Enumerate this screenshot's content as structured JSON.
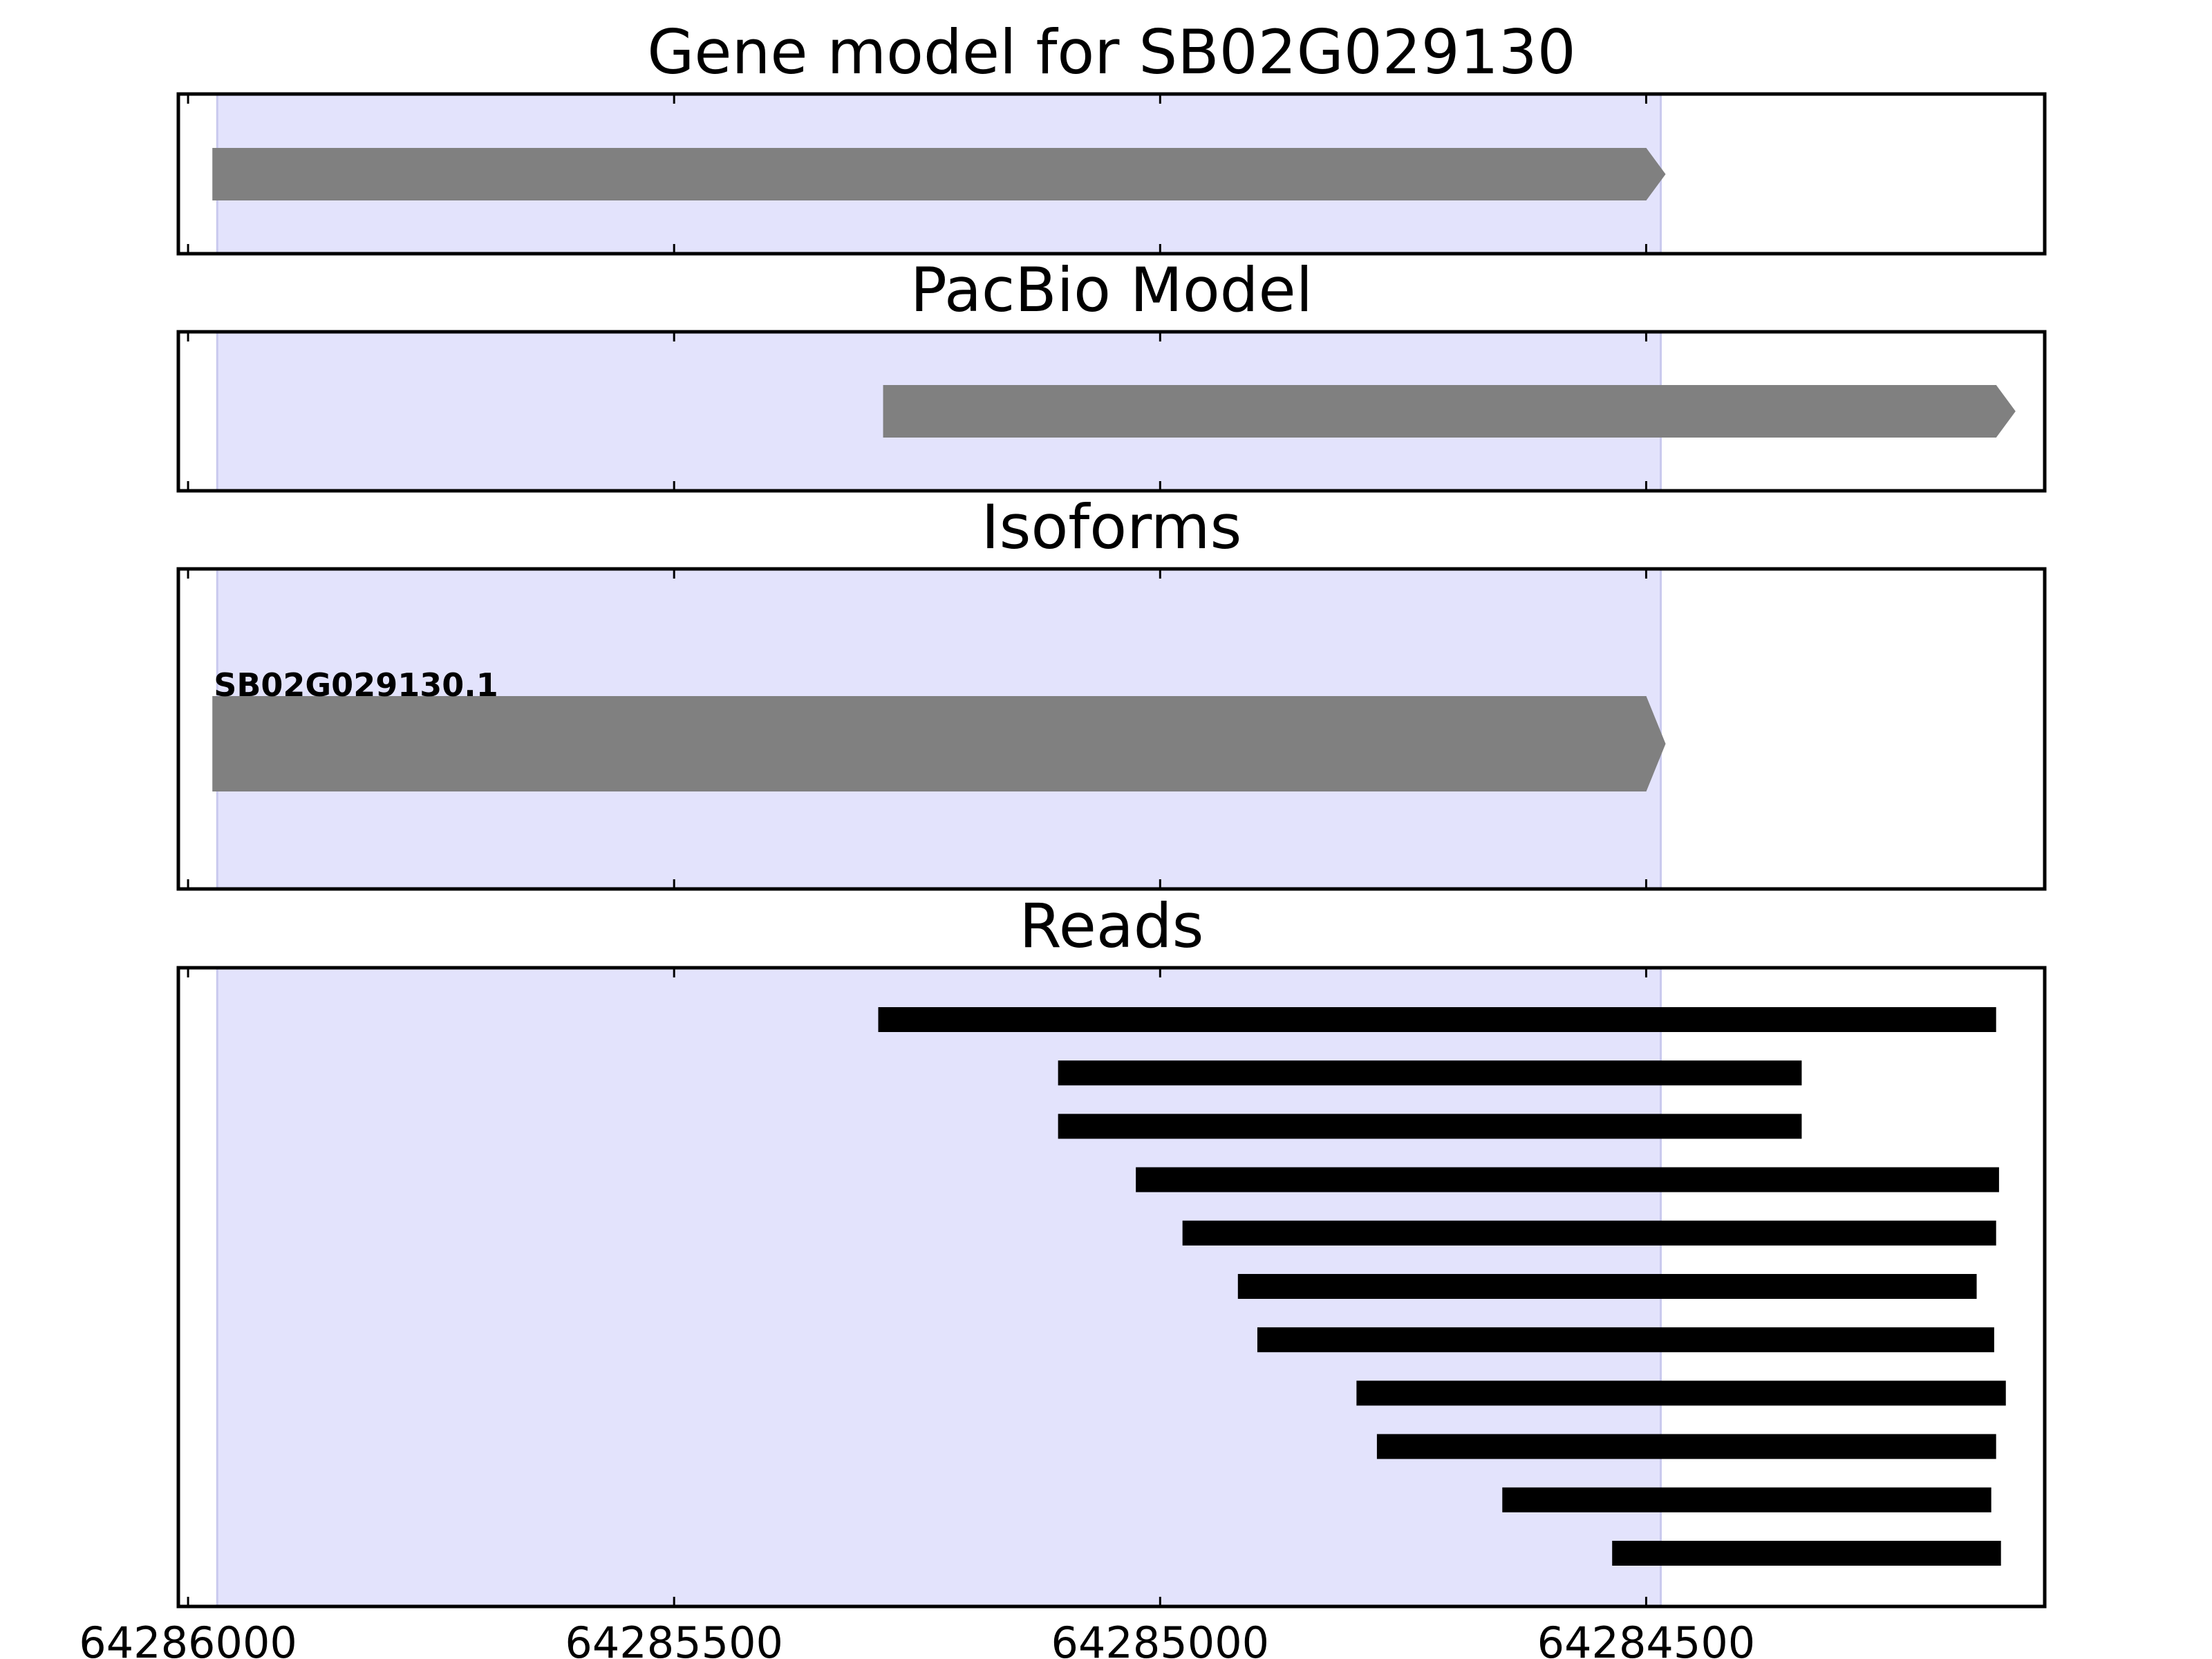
{
  "chart_data": {
    "type": "gene-track",
    "x_axis": {
      "reversed": true,
      "xlim": [
        64286010,
        64284090
      ],
      "ticks": [
        64286000,
        64285500,
        64285000,
        64284500
      ],
      "tick_labels": [
        "64286000",
        "64285500",
        "64285000",
        "64284500"
      ]
    },
    "highlight": {
      "start": 64285970,
      "end": 64284485,
      "color": "#e3e3fc"
    },
    "feature_color": "#808080",
    "read_color": "#000000",
    "panels": [
      {
        "title": "Gene model for SB02G029130",
        "features": [
          {
            "start": 64285975,
            "end": 64284480,
            "strand": "+"
          }
        ]
      },
      {
        "title": "PacBio Model",
        "features": [
          {
            "start": 64285285,
            "end": 64284120,
            "strand": "+"
          }
        ]
      },
      {
        "title": "Isoforms",
        "isoforms": [
          {
            "label": "SB02G029130.1",
            "start": 64285975,
            "end": 64284480,
            "strand": "+"
          }
        ]
      },
      {
        "title": "Reads",
        "reads": [
          {
            "start": 64285290,
            "end": 64284140
          },
          {
            "start": 64285105,
            "end": 64284340
          },
          {
            "start": 64285105,
            "end": 64284340
          },
          {
            "start": 64285025,
            "end": 64284137
          },
          {
            "start": 64284977,
            "end": 64284140
          },
          {
            "start": 64284920,
            "end": 64284160
          },
          {
            "start": 64284900,
            "end": 64284142
          },
          {
            "start": 64284798,
            "end": 64284130
          },
          {
            "start": 64284777,
            "end": 64284140
          },
          {
            "start": 64284648,
            "end": 64284145
          },
          {
            "start": 64284535,
            "end": 64284135
          }
        ]
      }
    ]
  }
}
